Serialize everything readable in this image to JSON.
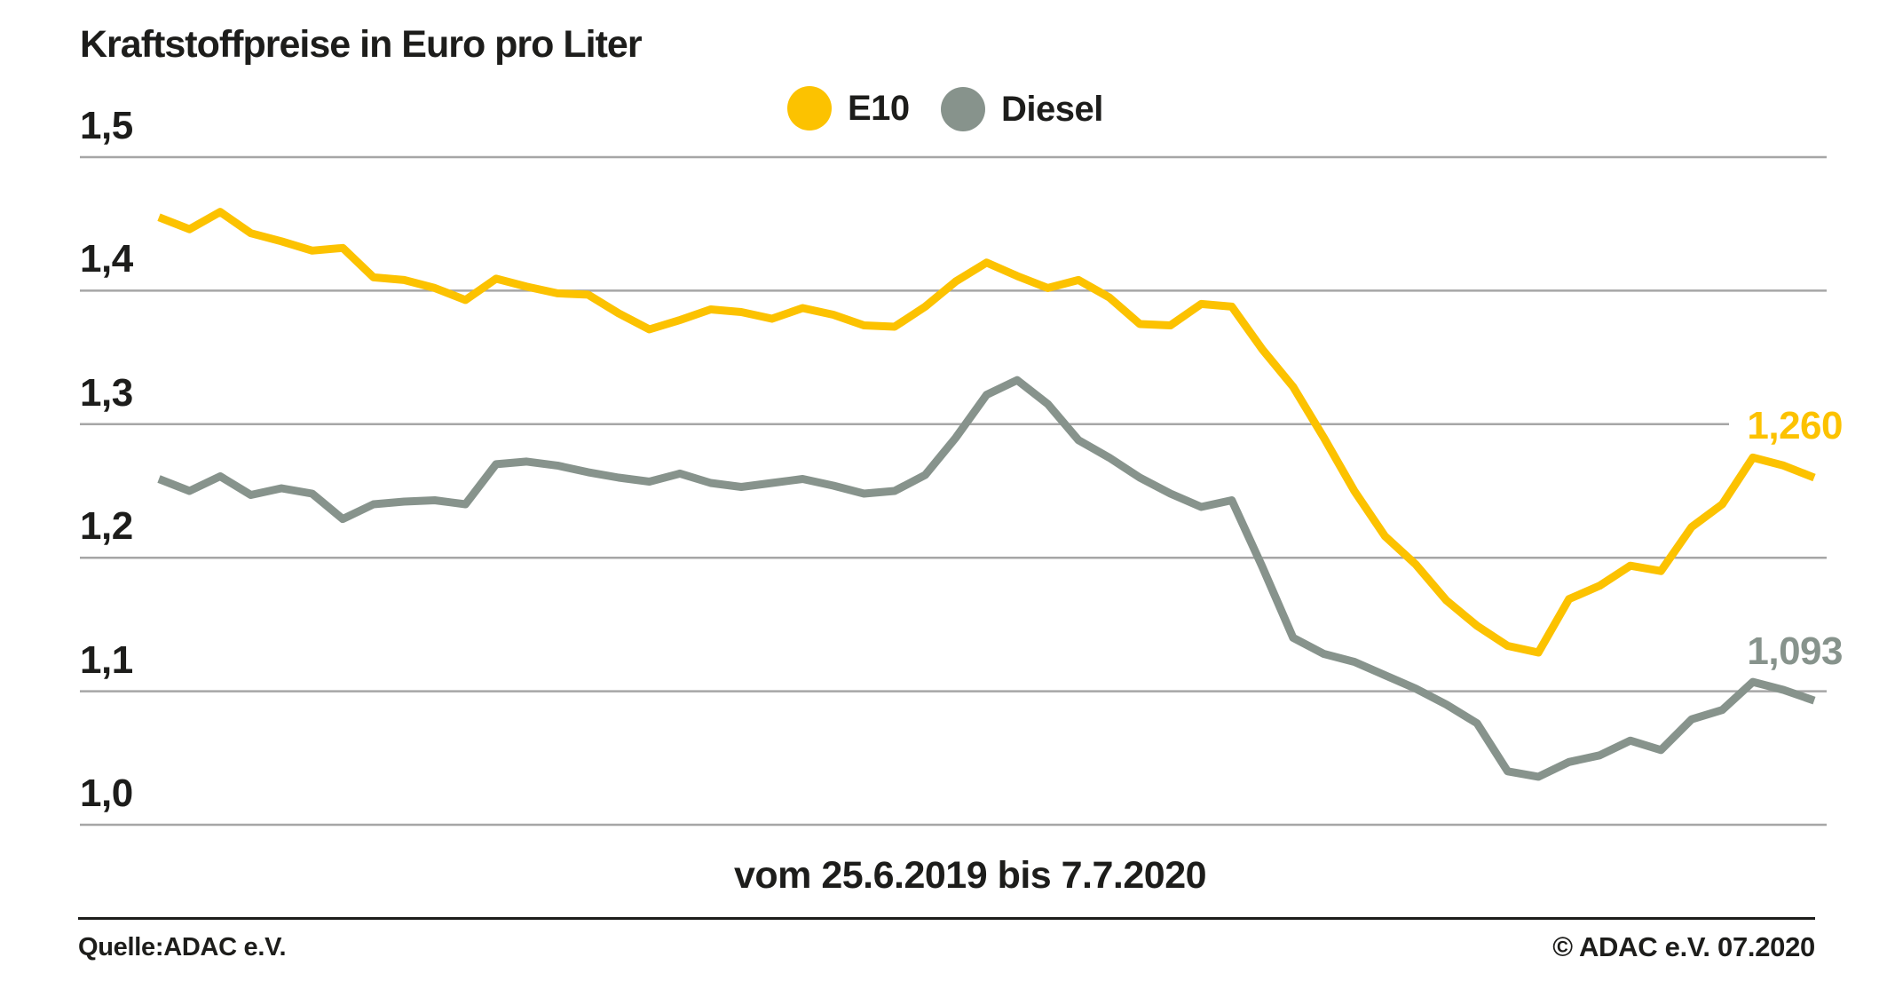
{
  "chart_data": {
    "type": "line",
    "title": "Kraftstoffpreise in Euro pro Liter",
    "x_caption": "vom 25.6.2019 bis 7.7.2020",
    "x_start_date": "25.6.2019",
    "x_end_date": "7.7.2020",
    "x_interval": "weekly",
    "ylabel": "Euro pro Liter",
    "ylim": [
      1.0,
      1.5
    ],
    "grid": true,
    "legend_position": "top-center",
    "y_ticks": [
      {
        "label": "1,5",
        "value": 1.5,
        "shortened": false
      },
      {
        "label": "1,4",
        "value": 1.4,
        "shortened": false
      },
      {
        "label": "1,3",
        "value": 1.3,
        "shortened": true
      },
      {
        "label": "1,2",
        "value": 1.2,
        "shortened": false
      },
      {
        "label": "1,1",
        "value": 1.1,
        "shortened": false
      },
      {
        "label": "1,0",
        "value": 1.0,
        "shortened": false
      }
    ],
    "series": [
      {
        "name": "E10",
        "color": "#FCC200",
        "end_label": "1,260",
        "end_value": 1.26,
        "values": [
          1.455,
          1.446,
          1.459,
          1.443,
          1.437,
          1.43,
          1.432,
          1.41,
          1.408,
          1.402,
          1.393,
          1.409,
          1.403,
          1.398,
          1.397,
          1.383,
          1.371,
          1.378,
          1.386,
          1.384,
          1.379,
          1.387,
          1.382,
          1.374,
          1.373,
          1.388,
          1.407,
          1.421,
          1.411,
          1.402,
          1.408,
          1.395,
          1.375,
          1.374,
          1.39,
          1.388,
          1.356,
          1.328,
          1.29,
          1.25,
          1.216,
          1.195,
          1.168,
          1.149,
          1.134,
          1.129,
          1.169,
          1.179,
          1.194,
          1.19,
          1.223,
          1.24,
          1.275,
          1.269,
          1.26
        ]
      },
      {
        "name": "Diesel",
        "color": "#87938C",
        "end_label": "1,093",
        "end_value": 1.093,
        "values": [
          1.259,
          1.25,
          1.261,
          1.247,
          1.252,
          1.248,
          1.229,
          1.24,
          1.242,
          1.243,
          1.24,
          1.27,
          1.272,
          1.269,
          1.264,
          1.26,
          1.257,
          1.263,
          1.256,
          1.253,
          1.256,
          1.259,
          1.254,
          1.248,
          1.25,
          1.262,
          1.29,
          1.322,
          1.333,
          1.315,
          1.288,
          1.275,
          1.26,
          1.248,
          1.238,
          1.243,
          1.193,
          1.14,
          1.128,
          1.122,
          1.112,
          1.102,
          1.09,
          1.076,
          1.04,
          1.036,
          1.047,
          1.052,
          1.063,
          1.056,
          1.079,
          1.086,
          1.107,
          1.101,
          1.093
        ]
      }
    ],
    "colors": {
      "grid": "#a6a6a6",
      "text": "#1d1d1b",
      "background": "#ffffff"
    }
  },
  "footer": {
    "source": "Quelle:ADAC e.V.",
    "copyright": "© ADAC e.V. 07.2020"
  }
}
